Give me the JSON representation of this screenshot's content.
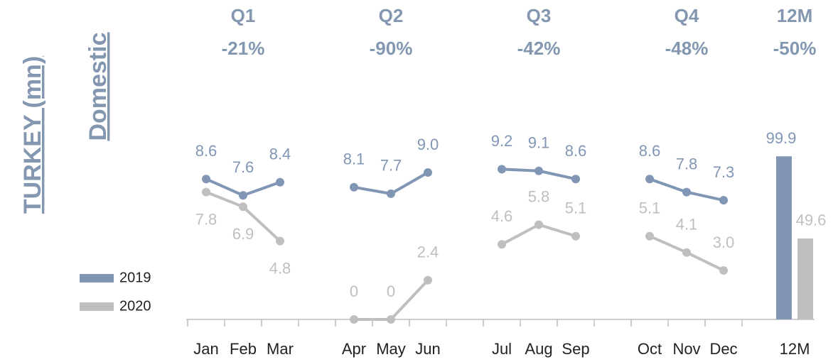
{
  "side_labels": [
    "TURKEY (mn)",
    "Domestic"
  ],
  "chart_data": [
    {
      "type": "line",
      "categories": [
        "Jan",
        "Feb",
        "Mar",
        null,
        "Apr",
        "May",
        "Jun",
        null,
        "Jul",
        "Aug",
        "Sep",
        null,
        "Oct",
        "Nov",
        "Dec",
        null
      ],
      "ylim": [
        0,
        12
      ],
      "annotations": [
        {
          "label": "Q1",
          "text": "-21%"
        },
        {
          "label": "Q2",
          "text": "-90%"
        },
        {
          "label": "Q3",
          "text": "-42%"
        },
        {
          "label": "Q4",
          "text": "-48%"
        }
      ],
      "series": [
        {
          "name": "2019",
          "color": "#8096b4",
          "values": [
            8.6,
            7.6,
            8.4,
            null,
            8.1,
            7.7,
            9.0,
            null,
            9.2,
            9.1,
            8.6,
            null,
            8.6,
            7.8,
            7.3,
            null
          ],
          "value_labels": [
            "8.6",
            "7.6",
            "8.4",
            null,
            "8.1",
            "7.7",
            "9.0",
            null,
            "9.2",
            "9.1",
            "8.6",
            null,
            "8.6",
            "7.8",
            "7.3",
            null
          ]
        },
        {
          "name": "2020",
          "color": "#bfbfbf",
          "values": [
            7.8,
            6.9,
            4.8,
            null,
            0,
            0,
            2.4,
            null,
            4.6,
            5.8,
            5.1,
            null,
            5.1,
            4.1,
            3.0,
            null
          ],
          "value_labels": [
            "7.8",
            "6.9",
            "4.8",
            null,
            "0",
            "0",
            "2.4",
            null,
            "4.6",
            "5.8",
            "5.1",
            null,
            "5.1",
            "4.1",
            "3.0",
            null
          ]
        }
      ]
    },
    {
      "type": "bar",
      "categories": [
        "12M"
      ],
      "ylim": [
        0,
        120
      ],
      "annotations": [
        {
          "label": "12M",
          "text": "-50%"
        }
      ],
      "series": [
        {
          "color": "#8096b4",
          "values": [
            99.9
          ]
        },
        {
          "color": "#bfbfbf",
          "values": [
            49.6
          ]
        }
      ]
    }
  ]
}
